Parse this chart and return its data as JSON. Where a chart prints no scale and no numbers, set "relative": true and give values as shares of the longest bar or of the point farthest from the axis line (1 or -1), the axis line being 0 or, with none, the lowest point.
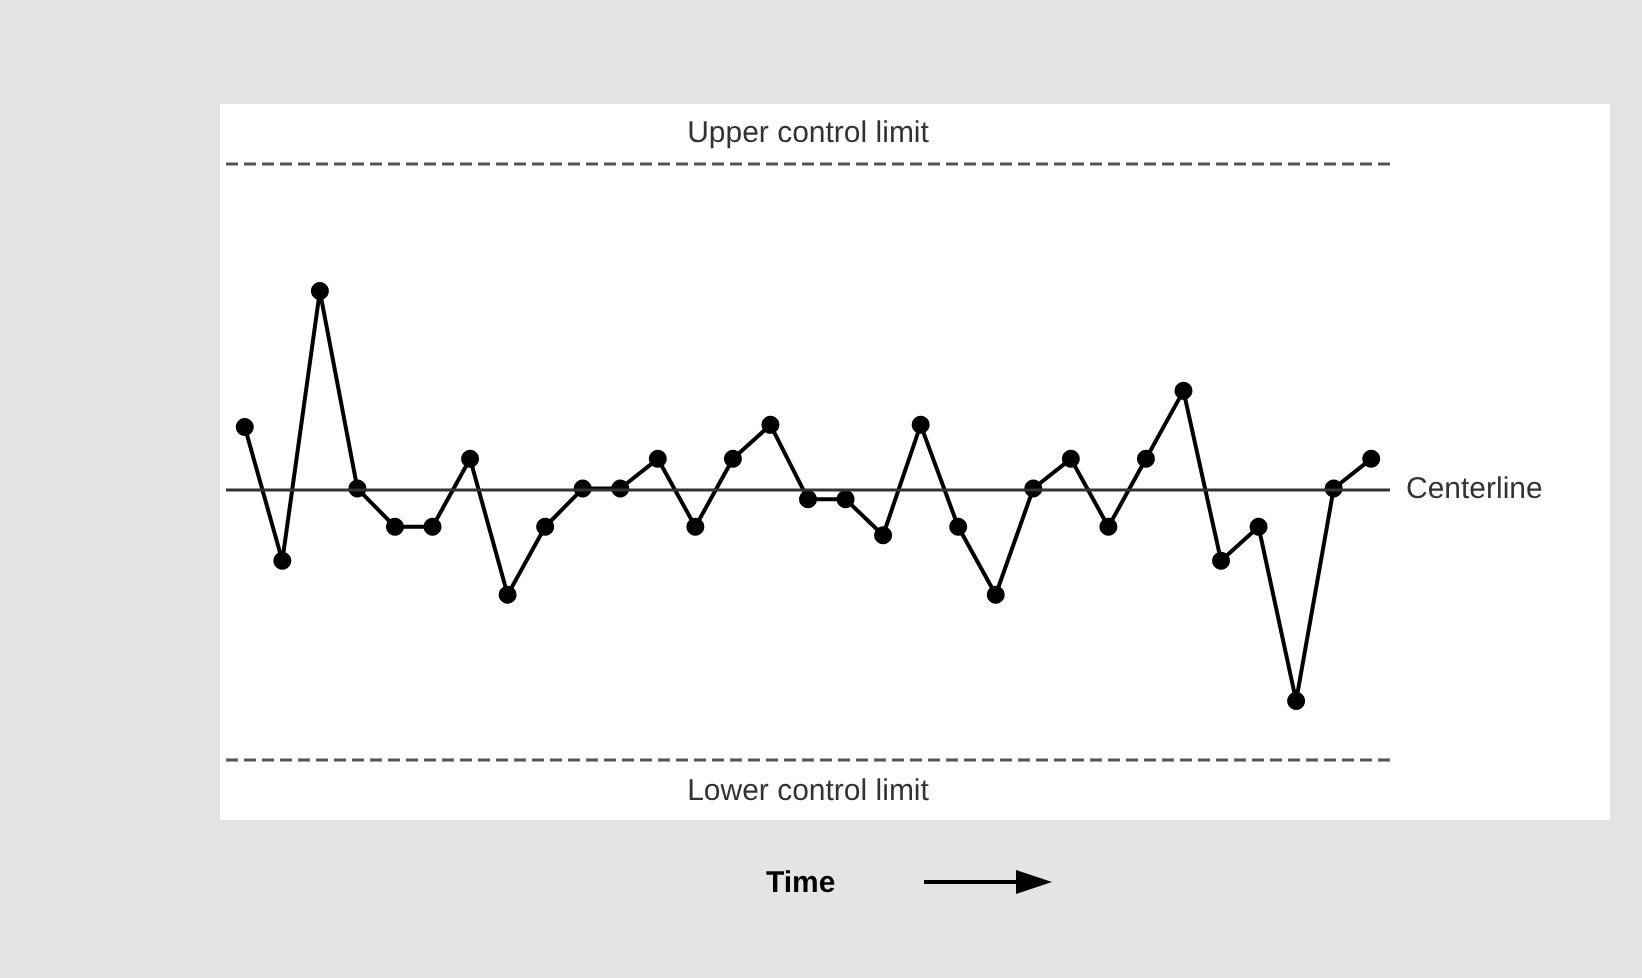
{
  "chart_data": {
    "type": "line",
    "annotations": [
      "Time"
    ],
    "relative": true,
    "marker": "circle",
    "line_style": "solid",
    "grid": false,
    "categories": [
      null,
      null,
      null,
      null,
      null,
      null,
      null,
      null,
      null,
      null,
      null,
      null,
      null,
      null,
      null,
      null,
      null,
      null,
      null,
      null,
      null,
      null,
      null,
      null,
      null,
      null,
      null,
      null,
      null,
      null,
      null
    ],
    "series": [
      {
        "color": "#000000",
        "values": [
          0.29,
          -0.34,
          0.93,
          0,
          -0.18,
          -0.18,
          0.14,
          -0.5,
          -0.18,
          0,
          0,
          0.14,
          -0.18,
          0.14,
          0.3,
          -0.05,
          -0.05,
          -0.22,
          0.3,
          -0.18,
          -0.5,
          0,
          0.14,
          -0.18,
          0.14,
          0.46,
          -0.34,
          -0.18,
          -1,
          0,
          0.14
        ]
      }
    ],
    "ref_lines": [
      {
        "axis": "y",
        "value": 1.53,
        "label": "Upper control limit",
        "line_style": "dashed",
        "color": "#555555"
      },
      {
        "axis": "y",
        "value": 0,
        "label": "Centerline",
        "line_style": "solid",
        "color": "#333333"
      },
      {
        "axis": "y",
        "value": -1.28,
        "label": "Lower control limit",
        "line_style": "dashed",
        "color": "#555555"
      }
    ]
  }
}
